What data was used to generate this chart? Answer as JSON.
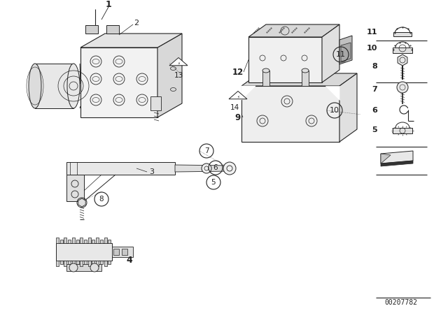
{
  "bg_color": "#ffffff",
  "line_color": "#222222",
  "diagram_id": "00207782",
  "figsize": [
    6.4,
    4.48
  ],
  "dpi": 100
}
